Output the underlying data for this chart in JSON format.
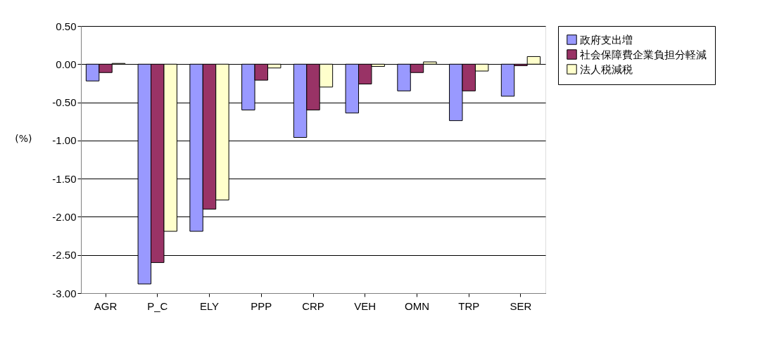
{
  "chart_data": {
    "type": "bar",
    "ylabel": "(%)",
    "categories": [
      "AGR",
      "P_C",
      "ELY",
      "PPP",
      "CRP",
      "VEH",
      "OMN",
      "TRP",
      "SER"
    ],
    "series": [
      {
        "name": "政府支出増",
        "color": "#9999ff",
        "values": [
          -0.22,
          -2.88,
          -2.19,
          -0.6,
          -0.96,
          -0.64,
          -0.35,
          -0.74,
          -0.42
        ]
      },
      {
        "name": "社会保障費企業負担分軽減",
        "color": "#993366",
        "values": [
          -0.11,
          -2.6,
          -1.9,
          -0.21,
          -0.6,
          -0.26,
          -0.11,
          -0.35,
          -0.02
        ]
      },
      {
        "name": "法人税減税",
        "color": "#ffffcc",
        "values": [
          0.01,
          -2.19,
          -1.78,
          -0.05,
          -0.3,
          -0.03,
          0.03,
          -0.09,
          0.1
        ]
      }
    ],
    "ylim": [
      -3.0,
      0.5
    ],
    "yticks": [
      {
        "value": -3.0,
        "label": "-3.00"
      },
      {
        "value": -2.5,
        "label": "-2.50"
      },
      {
        "value": -2.0,
        "label": "-2.00"
      },
      {
        "value": -1.5,
        "label": "-1.50"
      },
      {
        "value": -1.0,
        "label": "-1.00"
      },
      {
        "value": -0.5,
        "label": "-0.50"
      },
      {
        "value": 0.0,
        "label": "0.00"
      },
      {
        "value": 0.5,
        "label": "0.50"
      }
    ],
    "grid": "y",
    "legend": "right"
  }
}
